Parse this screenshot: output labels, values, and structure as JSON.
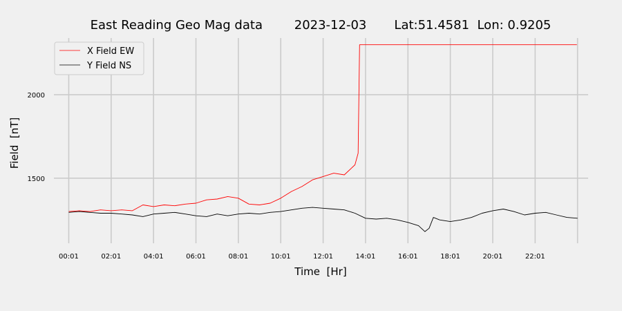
{
  "chart_data": {
    "type": "line",
    "title": "East Reading Geo Mag data        2023-12-03       Lat:51.4581  Lon: 0.9205",
    "xlabel": "Time  [Hr]",
    "ylabel": "Field  [nT]",
    "xlim": [
      -0.7,
      24.5
    ],
    "ylim": [
      1110,
      2340
    ],
    "x_ticks": [
      0,
      2,
      4,
      6,
      8,
      10,
      12,
      14,
      16,
      18,
      20,
      22
    ],
    "x_tick_labels": [
      "00:01",
      "02:01",
      "04:01",
      "06:01",
      "08:01",
      "10:01",
      "12:01",
      "14:01",
      "16:01",
      "18:01",
      "20:01",
      "22:01"
    ],
    "y_ticks": [
      1500,
      2000
    ],
    "y_tick_labels": [
      "1500",
      "2000"
    ],
    "x_gridlines": [
      0,
      2,
      4,
      6,
      8,
      10,
      12,
      14,
      16,
      18,
      20,
      22,
      24
    ],
    "grid": true,
    "legend_position": "top-left",
    "series": [
      {
        "name": "X Field EW",
        "color": "#ff0000",
        "x": [
          0,
          0.5,
          1,
          1.5,
          2,
          2.5,
          3,
          3.5,
          4,
          4.5,
          5,
          5.5,
          6,
          6.5,
          7,
          7.5,
          8,
          8.5,
          9,
          9.5,
          10,
          10.5,
          11,
          11.5,
          12,
          12.5,
          13,
          13.5,
          13.65,
          13.72,
          14,
          16,
          18,
          20,
          22,
          23.97
        ],
        "y": [
          1300,
          1305,
          1300,
          1310,
          1305,
          1310,
          1305,
          1340,
          1330,
          1340,
          1335,
          1345,
          1350,
          1370,
          1375,
          1390,
          1380,
          1345,
          1340,
          1350,
          1380,
          1420,
          1450,
          1490,
          1510,
          1530,
          1520,
          1580,
          1650,
          2300,
          2300,
          2300,
          2300,
          2300,
          2300,
          2300
        ]
      },
      {
        "name": "Y Field NS",
        "color": "#000000",
        "x": [
          0,
          0.5,
          1,
          1.5,
          2,
          2.5,
          3,
          3.5,
          4,
          4.5,
          5,
          5.5,
          6,
          6.5,
          7,
          7.5,
          8,
          8.5,
          9,
          9.5,
          10,
          10.5,
          11,
          11.5,
          12,
          12.5,
          13,
          13.5,
          14,
          14.5,
          15,
          15.5,
          16,
          16.5,
          16.8,
          17,
          17.2,
          17.5,
          18,
          18.5,
          19,
          19.5,
          20,
          20.5,
          21,
          21.5,
          22,
          22.5,
          23,
          23.5,
          24
        ],
        "y": [
          1295,
          1300,
          1295,
          1290,
          1290,
          1285,
          1280,
          1270,
          1285,
          1290,
          1295,
          1285,
          1275,
          1270,
          1285,
          1275,
          1285,
          1290,
          1285,
          1295,
          1300,
          1310,
          1320,
          1325,
          1320,
          1315,
          1310,
          1290,
          1260,
          1255,
          1260,
          1250,
          1235,
          1215,
          1180,
          1200,
          1265,
          1250,
          1240,
          1250,
          1265,
          1290,
          1305,
          1315,
          1300,
          1280,
          1290,
          1295,
          1280,
          1265,
          1260
        ]
      }
    ]
  }
}
